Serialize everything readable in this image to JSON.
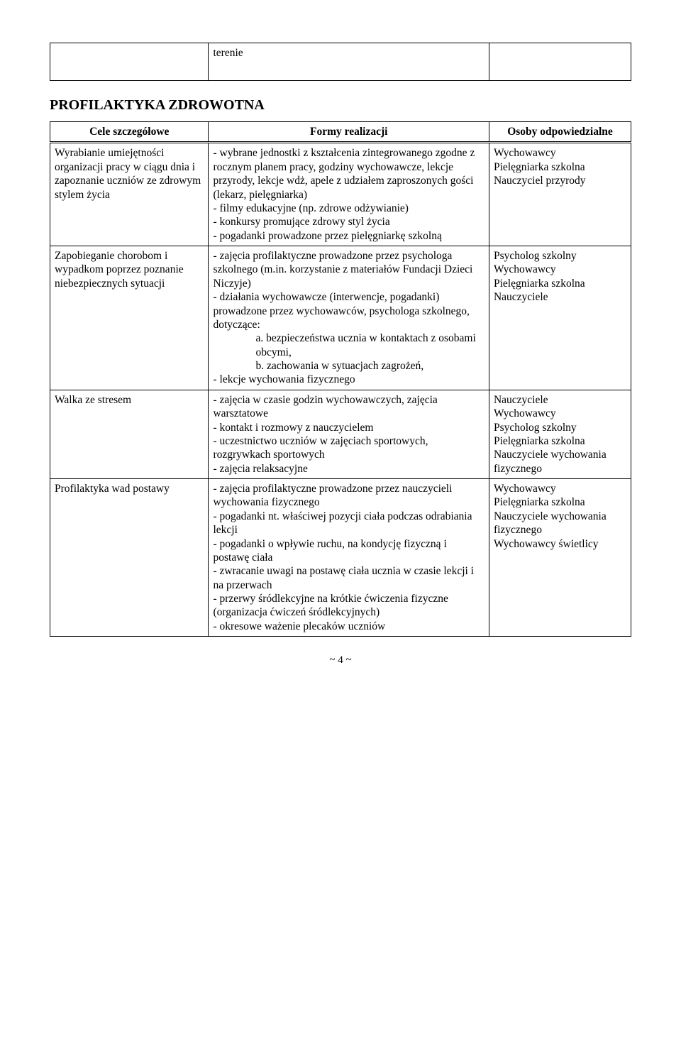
{
  "topTable": {
    "cell2": "terenie"
  },
  "sectionHeading": "PROFILAKTYKA ZDROWOTNA",
  "header": {
    "col1": "Cele szczegółowe",
    "col2": "Formy realizacji",
    "col3": "Osoby odpowiedzialne"
  },
  "rows": [
    {
      "c1": "Wyrabianie umiejętności organizacji pracy w ciągu dnia i zapoznanie uczniów ze zdrowym stylem życia",
      "c2": "- wybrane jednostki z kształcenia zintegrowanego zgodne z rocznym planem pracy, godziny wychowawcze, lekcje przyrody, lekcje wdż, apele z udziałem zaproszonych gości (lekarz, pielęgniarka)\n- filmy edukacyjne (np. zdrowe odżywianie)\n- konkursy promujące zdrowy styl życia\n- pogadanki prowadzone przez pielęgniarkę szkolną",
      "c3": "Wychowawcy\nPielęgniarka szkolna\nNauczyciel przyrody"
    },
    {
      "c1": "Zapobieganie chorobom i wypadkom poprzez poznanie niebezpiecznych sytuacji",
      "c2_pre": "- zajęcia profilaktyczne prowadzone przez psychologa szkolnego (m.in. korzystanie z materiałów Fundacji Dzieci Niczyje)\n- działania wychowawcze (interwencje, pogadanki) prowadzone przez wychowawców, psychologa szkolnego, dotyczące:",
      "c2_a": "a. bezpieczeństwa ucznia w kontaktach z osobami obcymi,",
      "c2_b": "b. zachowania w sytuacjach zagrożeń,",
      "c2_post": "- lekcje wychowania fizycznego",
      "c3": "Psycholog szkolny\nWychowawcy\nPielęgniarka szkolna\nNauczyciele"
    },
    {
      "c1": "Walka ze stresem",
      "c2": "- zajęcia w czasie godzin wychowawczych, zajęcia warsztatowe\n- kontakt i rozmowy z nauczycielem\n- uczestnictwo uczniów w zajęciach sportowych, rozgrywkach sportowych\n- zajęcia relaksacyjne",
      "c3": "Nauczyciele\nWychowawcy\nPsycholog szkolny\nPielęgniarka szkolna\nNauczyciele wychowania fizycznego"
    },
    {
      "c1": "Profilaktyka wad postawy",
      "c2": "- zajęcia profilaktyczne prowadzone przez nauczycieli wychowania fizycznego\n- pogadanki nt. właściwej pozycji ciała podczas odrabiania lekcji\n- pogadanki o wpływie ruchu, na kondycję fizyczną i postawę ciała\n- zwracanie uwagi na postawę ciała ucznia w czasie lekcji i na przerwach\n- przerwy śródlekcyjne na krótkie ćwiczenia fizyczne (organizacja ćwiczeń śródlekcyjnych)\n- okresowe ważenie plecaków uczniów",
      "c3": "Wychowawcy\nPielęgniarka szkolna\nNauczyciele wychowania fizycznego\nWychowawcy świetlicy"
    }
  ],
  "pageNumber": "~ 4 ~"
}
